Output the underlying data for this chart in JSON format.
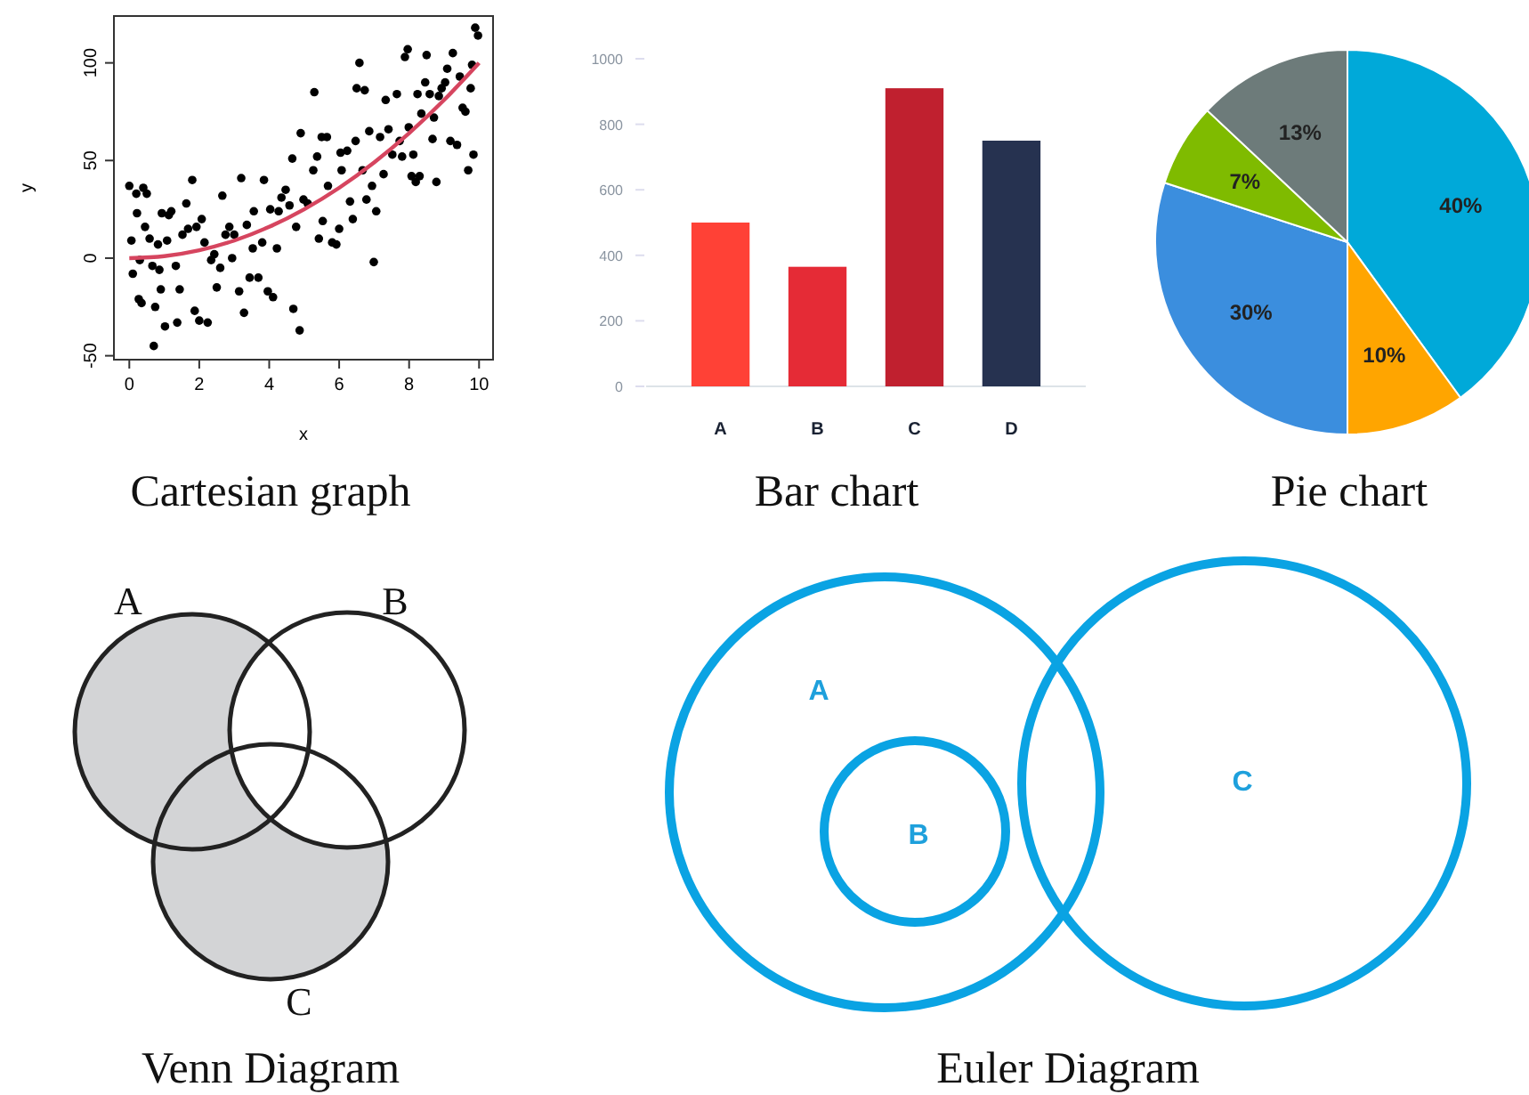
{
  "chart_data": [
    {
      "type": "scatter",
      "title": "Cartesian graph",
      "xlabel": "x",
      "ylabel": "y",
      "xlim": [
        -0.44,
        10.4
      ],
      "ylim": [
        -52,
        124
      ],
      "xticks": [
        0,
        2,
        4,
        6,
        8,
        10
      ],
      "yticks": [
        -50,
        0,
        50,
        100
      ],
      "grid": false,
      "series": [
        {
          "color": "#000000",
          "marker": "circle",
          "x": [
            0,
            0.06,
            0.1,
            0.2,
            0.22,
            0.27,
            0.35,
            0.3,
            0.4,
            0.45,
            0.5,
            0.58,
            0.66,
            0.7,
            0.74,
            0.82,
            0.86,
            0.93,
            0.9,
            1.02,
            1.08,
            1.13,
            1.2,
            1.33,
            1.37,
            1.44,
            1.52,
            1.63,
            1.68,
            1.8,
            1.87,
            1.92,
            2,
            2.07,
            2.15,
            2.24,
            2.34,
            2.43,
            2.5,
            2.6,
            2.66,
            2.75,
            2.86,
            2.94,
            3,
            3.14,
            3.2,
            3.28,
            3.36,
            3.44,
            3.53,
            3.56,
            3.69,
            3.85,
            3.8,
            3.96,
            4.03,
            4.11,
            4.22,
            4.27,
            4.35,
            4.47,
            4.58,
            4.66,
            4.69,
            4.77,
            4.87,
            4.9,
            4.98,
            5.1,
            5.26,
            5.29,
            5.37,
            5.42,
            5.5,
            5.53,
            5.65,
            5.68,
            5.8,
            5.92,
            6,
            6.04,
            6.07,
            6.23,
            6.31,
            6.39,
            6.47,
            6.5,
            6.58,
            6.67,
            6.73,
            6.78,
            6.86,
            6.94,
            6.99,
            7.06,
            7.17,
            7.27,
            7.33,
            7.41,
            7.52,
            7.65,
            7.73,
            7.8,
            7.88,
            7.96,
            7.99,
            8.07,
            8.12,
            8.19,
            8.24,
            8.3,
            8.35,
            8.46,
            8.5,
            8.59,
            8.67,
            8.71,
            8.78,
            8.85,
            8.93,
            9.03,
            9.09,
            9.18,
            9.25,
            9.37,
            9.45,
            9.53,
            9.61,
            9.69,
            9.76,
            9.84,
            9.89,
            9.97,
            9.8
          ],
          "values": [
            37,
            9,
            -8,
            33,
            23,
            -21,
            -23,
            -1,
            36,
            16,
            33,
            10,
            -4,
            -45,
            -25,
            7,
            -6,
            23,
            -16,
            -35,
            9,
            22,
            24,
            -4,
            -33,
            -16,
            12,
            28,
            15,
            40,
            -27,
            16,
            -32,
            20,
            8,
            -33,
            -1,
            2,
            -15,
            -5,
            32,
            12,
            16,
            0,
            12,
            -17,
            41,
            -28,
            17,
            -10,
            5,
            24,
            -10,
            40,
            8,
            -17,
            25,
            -20,
            5,
            24,
            31,
            35,
            27,
            51,
            -26,
            16,
            -37,
            64,
            30,
            28,
            45,
            85,
            52,
            10,
            62,
            19,
            62,
            37,
            8,
            7,
            15,
            54,
            45,
            55,
            29,
            20,
            60,
            87,
            100,
            45,
            86,
            30,
            65,
            37,
            -2,
            24,
            62,
            43,
            81,
            66,
            53,
            84,
            60,
            52,
            103,
            107,
            67,
            42,
            53,
            39,
            84,
            42,
            74,
            90,
            104,
            84,
            61,
            72,
            39,
            83,
            87,
            90,
            97,
            60,
            105,
            58,
            93,
            77,
            75,
            45,
            87,
            53,
            118,
            114,
            99
          ]
        },
        {
          "type": "line",
          "color": "#d6455f",
          "x": [
            0,
            1,
            2,
            3,
            4,
            5,
            6,
            7,
            8,
            9,
            10
          ],
          "values": [
            0,
            1,
            4,
            9,
            16,
            25,
            36,
            49,
            64,
            81,
            100
          ]
        }
      ]
    },
    {
      "type": "bar",
      "title": "Bar chart",
      "categories": [
        "A",
        "B",
        "C",
        "D"
      ],
      "values": [
        500,
        365,
        910,
        750
      ],
      "colors": [
        "#ff4136",
        "#e52b36",
        "#c0202f",
        "#263250"
      ],
      "ylim": [
        0,
        1000
      ],
      "yticks": [
        0,
        200,
        400,
        600,
        800,
        1000
      ]
    },
    {
      "type": "pie",
      "title": "Pie chart",
      "categories": [
        null,
        null,
        null,
        null,
        null
      ],
      "values": [
        40,
        10,
        30,
        7,
        13
      ],
      "colors": [
        "#00a9d9",
        "#ffa500",
        "#3b8ede",
        "#7fbb00",
        "#6d7b7a"
      ],
      "value_labels": [
        "40%",
        "10%",
        "30%",
        "7%",
        "13%"
      ]
    },
    {
      "type": "other",
      "title": "Venn Diagram",
      "annotations": [
        "A",
        "B",
        "C"
      ]
    },
    {
      "type": "other",
      "title": "Euler Diagram",
      "annotations": [
        "A",
        "B",
        "C"
      ]
    }
  ]
}
